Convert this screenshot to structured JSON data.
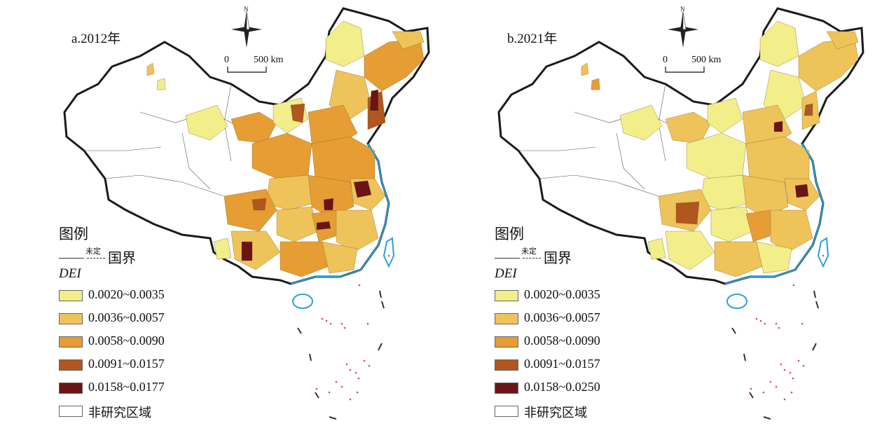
{
  "panels": [
    {
      "title": "a.2012年",
      "scale": {
        "zero": "0",
        "max_label": "500 km"
      },
      "north": "N",
      "legend": {
        "title": "图例",
        "undetermined": "未定",
        "border_label": "国界",
        "variable": "DEI",
        "classes": [
          {
            "range": "0.0020~0.0035",
            "color": "#f2ee8a"
          },
          {
            "range": "0.0036~0.0057",
            "color": "#eec35a"
          },
          {
            "range": "0.0058~0.0090",
            "color": "#e69d33"
          },
          {
            "range": "0.0091~0.0157",
            "color": "#b0561f"
          },
          {
            "range": "0.0158~0.0177",
            "color": "#6a1416"
          }
        ],
        "non_study": "非研究区域"
      }
    },
    {
      "title": "b.2021年",
      "scale": {
        "zero": "0",
        "max_label": "500 km"
      },
      "north": "N",
      "legend": {
        "title": "图例",
        "undetermined": "未定",
        "border_label": "国界",
        "variable": "DEI",
        "classes": [
          {
            "range": "0.0020~0.0035",
            "color": "#f2ee8a"
          },
          {
            "range": "0.0036~0.0057",
            "color": "#eec35a"
          },
          {
            "range": "0.0058~0.0090",
            "color": "#e69d33"
          },
          {
            "range": "0.0091~0.0157",
            "color": "#b0561f"
          },
          {
            "range": "0.0158~0.0250",
            "color": "#6a1416"
          }
        ],
        "non_study": "非研究区域"
      }
    }
  ],
  "colors": {
    "boundary": "#1a1a1a",
    "coast": "#2aa0d8",
    "islands": "#d0408a",
    "non_study_fill": "#ffffff"
  }
}
